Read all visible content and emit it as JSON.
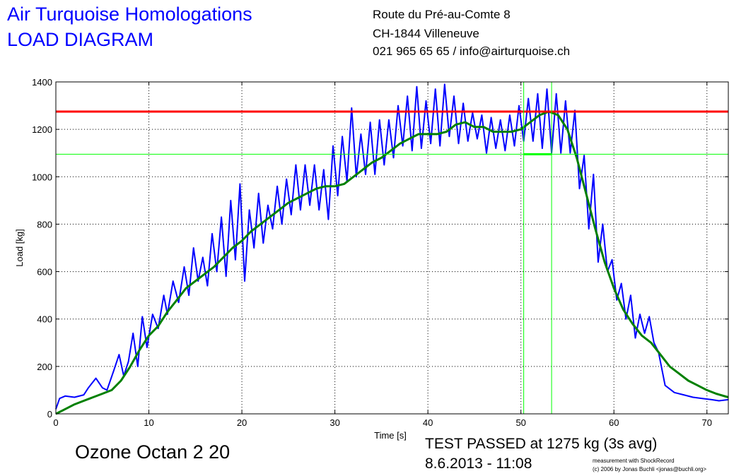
{
  "header": {
    "title_line1": "Air Turquoise Homologations",
    "title_line2": "LOAD DIAGRAM",
    "address": [
      "Route du Pré-au-Comte 8",
      "CH-1844 Villeneuve",
      "021 965 65 65 / info@airturquoise.ch"
    ]
  },
  "product_name": "Ozone Octan 2 20",
  "result": {
    "line1": "TEST PASSED at 1275 kg (3s avg)",
    "line2": "8.6.2013 - 11:08"
  },
  "credit": {
    "line1": "measurement with ShockRecord",
    "line2": "(c) 2006 by Jonas Buchli <jonas@buchli.org>"
  },
  "colors": {
    "raw_series": "#0000ff",
    "avg_series": "#008000",
    "limit_line": "#ff0000",
    "marker_lines": "#00ff00"
  },
  "chart_data": {
    "type": "line",
    "xlabel": "Time [s]",
    "ylabel": "Load [kg]",
    "xlim": [
      0,
      72.3
    ],
    "ylim": [
      0,
      1400
    ],
    "xticks": [
      0,
      10,
      20,
      30,
      40,
      50,
      60,
      70
    ],
    "yticks": [
      0,
      200,
      400,
      600,
      800,
      1000,
      1200,
      1400
    ],
    "grid": true,
    "series": [
      {
        "key": "raw",
        "x": [
          0,
          0.4,
          1,
          2,
          3,
          3.5,
          4.3,
          5,
          5.5,
          6.2,
          6.8,
          7.3,
          7.8,
          8.3,
          8.8,
          9.3,
          9.8,
          10.4,
          11,
          11.6,
          12,
          12.6,
          13.2,
          13.8,
          14.3,
          14.8,
          15.3,
          15.8,
          16.3,
          16.8,
          17.3,
          17.8,
          18.3,
          18.8,
          19.3,
          19.8,
          20.3,
          20.8,
          21.3,
          21.8,
          22.3,
          22.8,
          23.3,
          23.8,
          24.3,
          24.8,
          25.3,
          25.8,
          26.3,
          26.8,
          27.3,
          27.8,
          28.3,
          28.8,
          29.3,
          29.8,
          30.3,
          30.8,
          31.3,
          31.8,
          32.3,
          32.8,
          33.3,
          33.8,
          34.3,
          34.8,
          35.3,
          35.8,
          36.3,
          36.8,
          37.3,
          37.8,
          38.3,
          38.8,
          39.3,
          39.8,
          40.3,
          40.8,
          41.3,
          41.8,
          42.3,
          42.8,
          43.3,
          43.8,
          44.3,
          44.8,
          45.3,
          45.8,
          46.3,
          46.8,
          47.3,
          47.8,
          48.3,
          48.8,
          49.3,
          49.8,
          50.3,
          50.8,
          51.3,
          51.8,
          52.3,
          52.8,
          53.3,
          53.8,
          54.3,
          54.8,
          55.3,
          55.8,
          56.3,
          56.8,
          57.3,
          57.8,
          58.3,
          58.8,
          59.3,
          59.8,
          60.3,
          60.8,
          61.3,
          61.8,
          62.3,
          62.8,
          63.3,
          63.8,
          64.3,
          64.8,
          65.5,
          66.5,
          67.5,
          68.5,
          69.5,
          70.5,
          71.3,
          72.3
        ],
        "y": [
          20,
          65,
          75,
          70,
          80,
          110,
          150,
          110,
          100,
          180,
          250,
          160,
          220,
          340,
          200,
          410,
          280,
          420,
          360,
          500,
          420,
          560,
          470,
          620,
          500,
          700,
          560,
          660,
          540,
          760,
          600,
          830,
          580,
          900,
          650,
          970,
          560,
          860,
          700,
          930,
          720,
          880,
          780,
          960,
          800,
          990,
          840,
          1050,
          860,
          1050,
          880,
          1050,
          860,
          1030,
          820,
          1130,
          920,
          1170,
          980,
          1290,
          1000,
          1180,
          1010,
          1230,
          1010,
          1240,
          1050,
          1240,
          1080,
          1300,
          1130,
          1340,
          1110,
          1380,
          1120,
          1320,
          1140,
          1370,
          1130,
          1390,
          1170,
          1340,
          1140,
          1310,
          1150,
          1270,
          1160,
          1260,
          1100,
          1250,
          1120,
          1240,
          1110,
          1260,
          1130,
          1300,
          1150,
          1330,
          1150,
          1350,
          1120,
          1370,
          1100,
          1350,
          1100,
          1320,
          1100,
          1280,
          950,
          1090,
          780,
          1010,
          640,
          800,
          600,
          650,
          480,
          550,
          400,
          500,
          320,
          420,
          340,
          410,
          300,
          260,
          120,
          90,
          80,
          70,
          65,
          60,
          55,
          60
        ]
      },
      {
        "key": "avg",
        "x": [
          0,
          1,
          2,
          3,
          4,
          5,
          6,
          7,
          8,
          9,
          10,
          11,
          12,
          13,
          14,
          15,
          16,
          17,
          18,
          19,
          20,
          21,
          22,
          23,
          24,
          25,
          26,
          27,
          28,
          29,
          30,
          31,
          32,
          33,
          34,
          35,
          36,
          37,
          38,
          39,
          40,
          41,
          42,
          43,
          44,
          45,
          46,
          47,
          48,
          49,
          50,
          51,
          52,
          53,
          54,
          55,
          56,
          57,
          58,
          59,
          60,
          61,
          62,
          63,
          64,
          65,
          66,
          67,
          68,
          69,
          70,
          71,
          72.3
        ],
        "y": [
          0,
          20,
          40,
          55,
          70,
          85,
          100,
          140,
          200,
          270,
          330,
          370,
          430,
          480,
          530,
          560,
          590,
          620,
          660,
          700,
          730,
          770,
          800,
          830,
          860,
          890,
          910,
          930,
          950,
          960,
          960,
          970,
          1000,
          1030,
          1060,
          1080,
          1110,
          1140,
          1160,
          1180,
          1180,
          1180,
          1190,
          1220,
          1230,
          1210,
          1210,
          1190,
          1190,
          1190,
          1200,
          1230,
          1260,
          1275,
          1260,
          1200,
          1080,
          930,
          780,
          640,
          530,
          440,
          380,
          330,
          300,
          250,
          200,
          170,
          140,
          120,
          100,
          85,
          70
        ]
      }
    ],
    "reference_lines": [
      {
        "axis": "y",
        "value": 1275
      },
      {
        "axis": "y",
        "value": 1095
      },
      {
        "axis": "x",
        "value": 50.3
      },
      {
        "axis": "x",
        "value": 53.3
      }
    ],
    "avg_window_marker": {
      "x_start": 50.3,
      "x_end": 53.3,
      "y": 1095
    }
  }
}
